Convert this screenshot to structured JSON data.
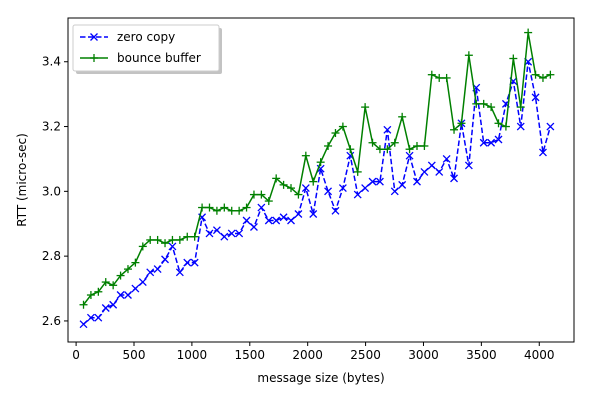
{
  "chart_data": {
    "type": "line",
    "xlabel": "message size (bytes)",
    "ylabel": "RTT (micro-sec)",
    "xlim": [
      -70,
      4300
    ],
    "ylim": [
      2.535,
      3.535
    ],
    "xticks": [
      0,
      500,
      1000,
      1500,
      2000,
      2500,
      3000,
      3500,
      4000
    ],
    "yticks": [
      2.6,
      2.8,
      3.0,
      3.2,
      3.4
    ],
    "ytick_labels": [
      "2.6",
      "2.8",
      "3.0",
      "3.2",
      "3.4"
    ],
    "grid": false,
    "legend_position": "top-left",
    "x": [
      64,
      128,
      192,
      256,
      320,
      384,
      448,
      512,
      576,
      640,
      704,
      768,
      832,
      896,
      960,
      1024,
      1088,
      1152,
      1216,
      1280,
      1344,
      1408,
      1472,
      1536,
      1600,
      1664,
      1728,
      1792,
      1856,
      1920,
      1984,
      2048,
      2112,
      2176,
      2240,
      2304,
      2368,
      2432,
      2496,
      2560,
      2624,
      2688,
      2752,
      2816,
      2880,
      2944,
      3008,
      3072,
      3136,
      3200,
      3264,
      3328,
      3392,
      3456,
      3520,
      3584,
      3648,
      3712,
      3776,
      3840,
      3904,
      3968,
      4032,
      4096
    ],
    "series": [
      {
        "name": "zero copy",
        "color": "#0000ff",
        "line_style": "dashed",
        "marker": "x",
        "values": [
          2.59,
          2.61,
          2.61,
          2.64,
          2.65,
          2.68,
          2.68,
          2.7,
          2.72,
          2.75,
          2.76,
          2.79,
          2.83,
          2.75,
          2.78,
          2.78,
          2.92,
          2.87,
          2.88,
          2.86,
          2.87,
          2.87,
          2.91,
          2.89,
          2.95,
          2.91,
          2.91,
          2.92,
          2.91,
          2.93,
          3.01,
          2.93,
          3.07,
          3.0,
          2.94,
          3.01,
          3.11,
          2.99,
          3.01,
          3.03,
          3.03,
          3.19,
          3.0,
          3.02,
          3.11,
          3.03,
          3.06,
          3.08,
          3.06,
          3.1,
          3.04,
          3.21,
          3.08,
          3.32,
          3.15,
          3.15,
          3.16,
          3.27,
          3.34,
          3.2,
          3.4,
          3.29,
          3.12,
          3.2
        ]
      },
      {
        "name": "bounce buffer",
        "color": "#008000",
        "line_style": "solid",
        "marker": "+",
        "values": [
          2.65,
          2.68,
          2.69,
          2.72,
          2.71,
          2.74,
          2.76,
          2.78,
          2.83,
          2.85,
          2.85,
          2.84,
          2.85,
          2.85,
          2.86,
          2.86,
          2.95,
          2.95,
          2.94,
          2.95,
          2.94,
          2.94,
          2.95,
          2.99,
          2.99,
          2.97,
          3.04,
          3.02,
          3.01,
          2.99,
          3.11,
          3.03,
          3.09,
          3.14,
          3.18,
          3.2,
          3.13,
          3.06,
          3.26,
          3.15,
          3.13,
          3.13,
          3.15,
          3.23,
          3.13,
          3.14,
          3.14,
          3.36,
          3.35,
          3.35,
          3.19,
          3.21,
          3.42,
          3.27,
          3.27,
          3.26,
          3.21,
          3.2,
          3.41,
          3.26,
          3.49,
          3.36,
          3.35,
          3.36
        ]
      }
    ]
  }
}
